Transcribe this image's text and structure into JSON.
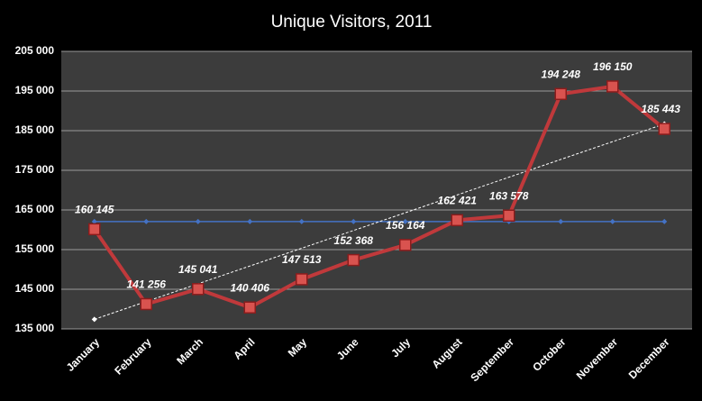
{
  "chart_data": {
    "type": "line",
    "title": "Unique Visitors, 2011",
    "categories": [
      "January",
      "February",
      "March",
      "April",
      "May",
      "June",
      "July",
      "August",
      "September",
      "October",
      "November",
      "December"
    ],
    "series": [
      {
        "color": "#c0393b",
        "values": [
          160145,
          141256,
          145041,
          140406,
          147513,
          152368,
          156164,
          162421,
          163578,
          194248,
          196150,
          185443
        ],
        "value_labels": [
          "160 145",
          "141 256",
          "145 041",
          "140 406",
          "147 513",
          "152 368",
          "156 164",
          "162 421",
          "163 578",
          "194 248",
          "196 150",
          "185 443"
        ]
      },
      {
        "color": "#4472c4",
        "values": [
          162061,
          162061,
          162061,
          162061,
          162061,
          162061,
          162061,
          162061,
          162061,
          162061,
          162061,
          162061
        ]
      },
      {
        "color": "#ffffff",
        "dashed": true,
        "values": [
          137424,
          141904,
          146383,
          150863,
          155342,
          159822,
          164301,
          168781,
          173260,
          177740,
          182219,
          186699
        ]
      }
    ],
    "ylim": [
      135000,
      205000
    ],
    "yticks": [
      {
        "value": 135000,
        "label": "135 000"
      },
      {
        "value": 145000,
        "label": "145 000"
      },
      {
        "value": 155000,
        "label": "155 000"
      },
      {
        "value": 165000,
        "label": "165 000"
      },
      {
        "value": 175000,
        "label": "175 000"
      },
      {
        "value": 185000,
        "label": "185 000"
      },
      {
        "value": 195000,
        "label": "195 000"
      },
      {
        "value": 205000,
        "label": "205 000"
      }
    ],
    "grid": true
  }
}
